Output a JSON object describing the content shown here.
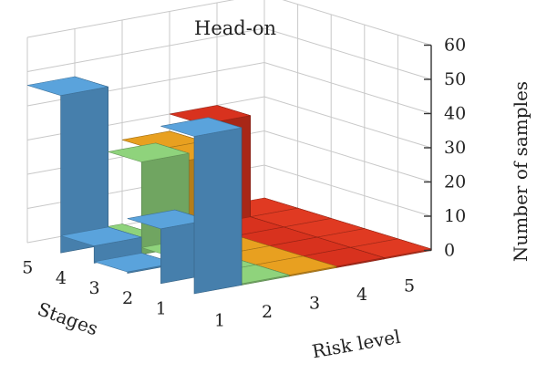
{
  "chart_data": {
    "type": "bar3d",
    "title": "Head-on",
    "xlabel": "Risk level",
    "ylabel": "Stages",
    "zlabel": "Number of samples",
    "x_ticks": [
      "1",
      "2",
      "3",
      "4",
      "5"
    ],
    "y_ticks": [
      "1",
      "2",
      "3",
      "4",
      "5"
    ],
    "z_ticks": [
      "0",
      "10",
      "20",
      "30",
      "40",
      "50",
      "60"
    ],
    "zlim": [
      0,
      60
    ],
    "grid": true,
    "series": [
      {
        "risk": "1",
        "color": "#5aa3dc",
        "values": [
          46,
          16,
          0,
          5,
          46
        ]
      },
      {
        "risk": "2",
        "color": "#8fd37c",
        "values": [
          0,
          0,
          2,
          27,
          0
        ]
      },
      {
        "risk": "3",
        "color": "#e8a020",
        "values": [
          0,
          0,
          0,
          25,
          25
        ]
      },
      {
        "risk": "4",
        "color": "#d8321e",
        "values": [
          0,
          0,
          0,
          0,
          30
        ]
      },
      {
        "risk": "5",
        "color": "#e03a22",
        "values": [
          0,
          0,
          0,
          0,
          0
        ]
      }
    ]
  }
}
